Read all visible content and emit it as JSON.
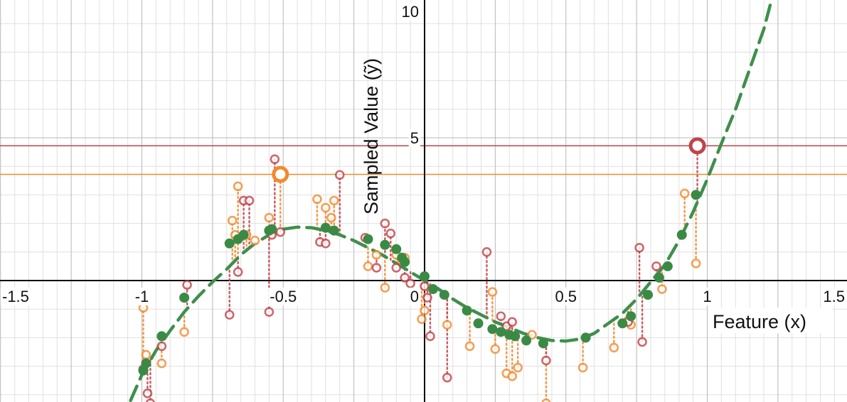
{
  "chart_data": {
    "type": "scatter",
    "title": "",
    "xlabel": "Feature (x)",
    "ylabel": "Sampled Value (ỹ)",
    "xlim": [
      -1.5,
      1.5
    ],
    "ylim": [
      -4.2,
      10.3
    ],
    "grid": true,
    "x_ticks": [
      -1.5,
      -1,
      -0.5,
      0,
      0.5,
      1,
      1.5
    ],
    "x_tick_labels": [
      "-1.5",
      "-1",
      "-0.5",
      "0",
      "0.5",
      "1",
      "1.5"
    ],
    "y_ticks": [
      5,
      10
    ],
    "y_tick_labels": [
      "5",
      "10"
    ],
    "colors": {
      "curve": "#3f8f4c",
      "green_points": "#3a8a45",
      "orange": "#f28a2e",
      "red": "#c0444b",
      "axis": "#000000",
      "grid_major": "#b8b8b8",
      "grid_minor": "#e0e0e0"
    },
    "curve": {
      "style": "dashed",
      "x": [
        -1.04,
        -1.0,
        -0.95,
        -0.9,
        -0.85,
        -0.8,
        -0.75,
        -0.7,
        -0.65,
        -0.6,
        -0.55,
        -0.5,
        -0.45,
        -0.4,
        -0.35,
        -0.3,
        -0.25,
        -0.2,
        -0.15,
        -0.1,
        -0.05,
        0.0,
        0.05,
        0.1,
        0.15,
        0.2,
        0.25,
        0.3,
        0.35,
        0.4,
        0.45,
        0.5,
        0.55,
        0.6,
        0.65,
        0.7,
        0.75,
        0.8,
        0.85,
        0.9,
        0.95,
        1.0,
        1.05,
        1.1,
        1.15,
        1.2,
        1.24
      ],
      "y": [
        -4.2,
        -3.3,
        -2.45,
        -1.75,
        -1.1,
        -0.55,
        -0.05,
        0.4,
        0.9,
        1.3,
        1.6,
        1.8,
        1.87,
        1.85,
        1.75,
        1.6,
        1.4,
        1.15,
        0.9,
        0.6,
        0.3,
        0.0,
        -0.3,
        -0.65,
        -0.95,
        -1.2,
        -1.45,
        -1.65,
        -1.85,
        -2.0,
        -2.1,
        -2.12,
        -2.05,
        -1.85,
        -1.5,
        -1.15,
        -0.65,
        -0.05,
        0.55,
        1.4,
        2.4,
        3.55,
        4.8,
        6.0,
        7.4,
        8.8,
        10.3
      ]
    },
    "fitted_points": {
      "x": [
        -0.995,
        -0.985,
        -0.93,
        -0.85,
        -0.69,
        -0.66,
        -0.64,
        -0.55,
        -0.54,
        -0.35,
        -0.32,
        -0.2,
        -0.14,
        -0.1,
        -0.08,
        -0.07,
        0.0,
        0.03,
        0.07,
        0.15,
        0.19,
        0.24,
        0.27,
        0.3,
        0.32,
        0.36,
        0.42,
        0.57,
        0.7,
        0.73,
        0.79,
        0.83,
        0.86,
        0.91,
        0.96
      ],
      "y": [
        -3.15,
        -2.9,
        -1.95,
        -0.6,
        1.3,
        1.45,
        1.6,
        1.75,
        1.8,
        1.85,
        1.75,
        1.45,
        1.25,
        1.1,
        0.8,
        0.65,
        0.15,
        -0.3,
        -0.5,
        -1.05,
        -1.5,
        -1.7,
        -1.8,
        -1.9,
        -1.95,
        -2.1,
        -2.2,
        -2.0,
        -1.5,
        -1.25,
        -0.5,
        0.1,
        0.5,
        1.6,
        3.0
      ]
    },
    "series": [
      {
        "marker": "ring",
        "color": "orange",
        "x": [
          -0.995,
          -0.985,
          -0.93,
          -0.85,
          -0.68,
          -0.67,
          -0.66,
          -0.63,
          -0.6,
          -0.55,
          -0.54,
          -0.38,
          -0.35,
          -0.33,
          -0.32,
          -0.2,
          -0.17,
          -0.14,
          -0.1,
          -0.08,
          -0.07,
          -0.01,
          0.0,
          0.08,
          0.16,
          0.24,
          0.25,
          0.29,
          0.31,
          0.33,
          0.38,
          0.43,
          0.56,
          0.67,
          0.72,
          0.73,
          0.84,
          0.92,
          0.96
        ],
        "y": [
          -0.95,
          -2.6,
          -2.9,
          -1.8,
          2.1,
          1.6,
          3.3,
          1.6,
          1.4,
          2.2,
          1.7,
          2.85,
          2.55,
          2.2,
          2.8,
          0.5,
          0.9,
          -0.25,
          0.9,
          0.7,
          0.8,
          -1.35,
          -1.05,
          -1.55,
          -2.3,
          -0.4,
          -2.4,
          -3.25,
          -3.35,
          -3.05,
          -1.9,
          -4.3,
          -3.05,
          -2.35,
          -1.4,
          -1.55,
          -0.3,
          3.05,
          0.6
        ]
      },
      {
        "marker": "ring",
        "color": "red",
        "x": [
          -0.995,
          -0.98,
          -0.97,
          -0.93,
          -0.84,
          -0.69,
          -0.66,
          -0.64,
          -0.62,
          -0.55,
          -0.54,
          -0.53,
          -0.51,
          -0.37,
          -0.35,
          -0.3,
          -0.21,
          -0.17,
          -0.14,
          -0.12,
          -0.1,
          -0.07,
          -0.05,
          0.0,
          0.01,
          0.02,
          0.08,
          0.22,
          0.27,
          0.29,
          0.31,
          0.43,
          0.57,
          0.72,
          0.76,
          0.77,
          0.82
        ],
        "y": [
          -3.1,
          -3.95,
          -4.3,
          -2.3,
          -0.15,
          -1.2,
          0.3,
          2.8,
          2.8,
          -1.1,
          1.6,
          4.25,
          1.7,
          1.35,
          1.3,
          3.7,
          1.5,
          0.45,
          2.0,
          1.65,
          0.45,
          0.1,
          -0.1,
          -0.2,
          -0.6,
          -1.95,
          -3.4,
          1.0,
          -1.25,
          -1.6,
          -1.45,
          -2.8,
          -2.0,
          -1.45,
          1.15,
          -2.15,
          0.5
        ]
      }
    ],
    "highlighted_points": [
      {
        "x": -0.51,
        "y": 3.72,
        "color": "orange"
      },
      {
        "x": 0.965,
        "y": 4.72,
        "color": "red"
      }
    ],
    "reference_lines": [
      {
        "axis": "y",
        "value": 4.72,
        "color": "red"
      },
      {
        "axis": "y",
        "value": 3.72,
        "color": "orange"
      }
    ]
  }
}
